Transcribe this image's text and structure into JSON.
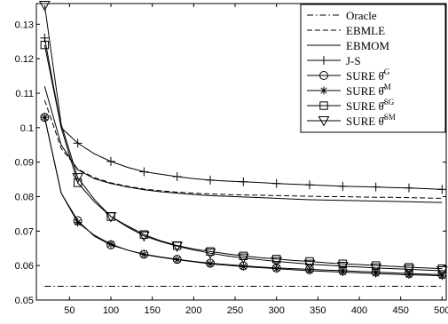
{
  "chart_data": {
    "type": "line",
    "title": "",
    "xlabel": "",
    "ylabel": "",
    "xlim": [
      10,
      505
    ],
    "ylim": [
      0.05,
      0.136
    ],
    "x_ticks": [
      50,
      100,
      150,
      200,
      250,
      300,
      350,
      400,
      450,
      500
    ],
    "y_ticks": [
      0.05,
      0.06,
      0.07,
      0.08,
      0.09,
      0.1,
      0.11,
      0.12,
      0.13
    ],
    "x_tick_labels": [
      "50",
      "100",
      "150",
      "200",
      "250",
      "300",
      "350",
      "400",
      "450",
      "500"
    ],
    "y_tick_labels": [
      "0.05",
      "0.06",
      "0.07",
      "0.08",
      "0.09",
      "0.1",
      "0.11",
      "0.12",
      "0.13"
    ],
    "grid": false,
    "legend_position": "top-right",
    "x": [
      20,
      40,
      60,
      80,
      100,
      120,
      140,
      160,
      180,
      200,
      220,
      240,
      260,
      280,
      300,
      320,
      340,
      360,
      380,
      400,
      420,
      440,
      460,
      480,
      500
    ],
    "series": [
      {
        "name": "Oracle",
        "sub": "",
        "sup": "",
        "style": "dashdot",
        "marker": "none",
        "values": [
          0.054,
          0.054,
          0.054,
          0.054,
          0.054,
          0.054,
          0.054,
          0.054,
          0.054,
          0.054,
          0.054,
          0.054,
          0.054,
          0.054,
          0.054,
          0.054,
          0.054,
          0.054,
          0.054,
          0.054,
          0.054,
          0.054,
          0.054,
          0.054,
          0.054
        ]
      },
      {
        "name": "EBMLE",
        "sub": "",
        "sup": "",
        "style": "dashed",
        "marker": "none",
        "values": [
          0.108,
          0.094,
          0.088,
          0.0855,
          0.084,
          0.083,
          0.0822,
          0.0817,
          0.0813,
          0.081,
          0.0808,
          0.0806,
          0.0805,
          0.0804,
          0.0803,
          0.0802,
          0.0801,
          0.08,
          0.08,
          0.0799,
          0.0798,
          0.0798,
          0.0797,
          0.0796,
          0.0795
        ]
      },
      {
        "name": "EBMOM",
        "sub": "",
        "sup": "",
        "style": "solid",
        "marker": "none",
        "values": [
          0.112,
          0.095,
          0.0878,
          0.0852,
          0.0838,
          0.0828,
          0.082,
          0.0814,
          0.081,
          0.0806,
          0.0803,
          0.0801,
          0.0799,
          0.0797,
          0.0795,
          0.0793,
          0.0791,
          0.079,
          0.0789,
          0.0788,
          0.0787,
          0.0786,
          0.0785,
          0.0784,
          0.0783
        ]
      },
      {
        "name": "J-S",
        "sub": "",
        "sup": "",
        "style": "solid",
        "marker": "plus",
        "values": [
          0.126,
          0.1,
          0.0955,
          0.0924,
          0.0902,
          0.0885,
          0.0872,
          0.0865,
          0.0858,
          0.0852,
          0.0848,
          0.0845,
          0.0843,
          0.0841,
          0.0838,
          0.0836,
          0.0834,
          0.0832,
          0.083,
          0.0829,
          0.0828,
          0.0826,
          0.0825,
          0.0823,
          0.0821
        ]
      },
      {
        "name": "SURE ",
        "sub": "θ̂",
        "sup": "G",
        "style": "solid",
        "marker": "circle",
        "values": [
          0.103,
          0.081,
          0.073,
          0.0685,
          0.066,
          0.0645,
          0.0633,
          0.0625,
          0.0618,
          0.0612,
          0.0607,
          0.0603,
          0.0599,
          0.0596,
          0.0593,
          0.0591,
          0.0589,
          0.0587,
          0.0585,
          0.0583,
          0.0581,
          0.0579,
          0.0577,
          0.0575,
          0.0574
        ]
      },
      {
        "name": "SURE ",
        "sub": "θ̂",
        "sup": "M",
        "style": "solid",
        "marker": "asterisk",
        "values": [
          0.103,
          0.081,
          0.0725,
          0.0688,
          0.0662,
          0.0645,
          0.0632,
          0.0624,
          0.0617,
          0.0611,
          0.0605,
          0.0601,
          0.0597,
          0.0594,
          0.0591,
          0.0588,
          0.0585,
          0.0583,
          0.0581,
          0.0579,
          0.0577,
          0.0575,
          0.0573,
          0.0572,
          0.057
        ]
      },
      {
        "name": "SURE ",
        "sub": "θ̂",
        "sup": "SG",
        "style": "solid",
        "marker": "square",
        "values": [
          0.124,
          0.1,
          0.084,
          0.0785,
          0.0742,
          0.0715,
          0.069,
          0.0672,
          0.0658,
          0.0648,
          0.0641,
          0.0634,
          0.0628,
          0.0623,
          0.0619,
          0.0615,
          0.0612,
          0.0608,
          0.0605,
          0.0603,
          0.06,
          0.0598,
          0.0595,
          0.0593,
          0.0591
        ]
      },
      {
        "name": "SURE ",
        "sub": "θ̂",
        "sup": "SM",
        "style": "solid",
        "marker": "triangle-down",
        "values": [
          0.1355,
          0.101,
          0.0855,
          0.0792,
          0.0742,
          0.0712,
          0.0686,
          0.067,
          0.0656,
          0.0645,
          0.0636,
          0.0628,
          0.0622,
          0.0617,
          0.0612,
          0.0608,
          0.0604,
          0.0601,
          0.0598,
          0.0596,
          0.0593,
          0.0591,
          0.0589,
          0.0587,
          0.0585
        ]
      }
    ]
  }
}
